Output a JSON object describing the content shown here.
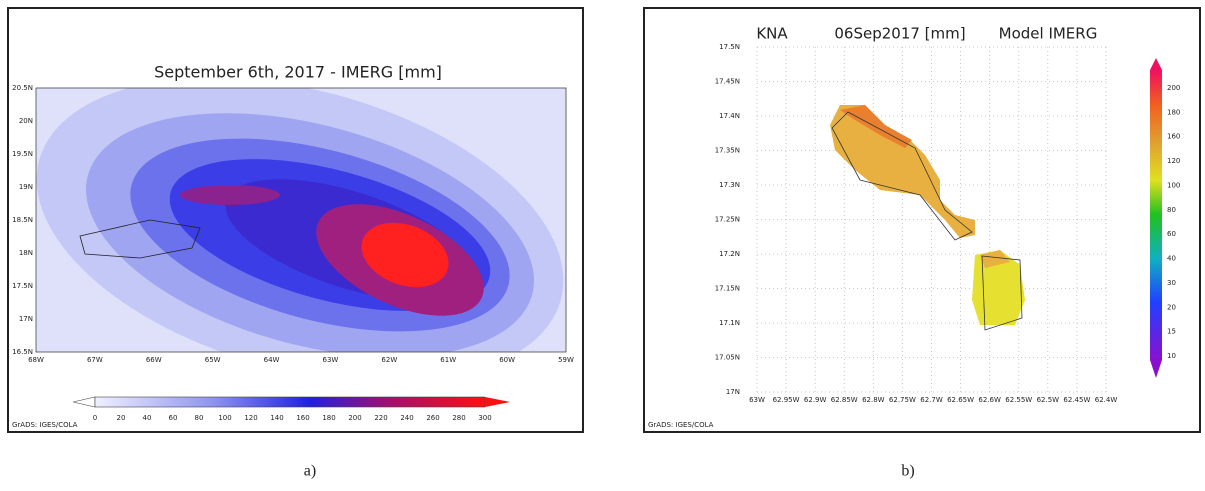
{
  "panels": [
    {
      "title": "September 6th, 2017 - IMERG [mm]",
      "y_labels": [
        "20.5N",
        "20N",
        "19.5N",
        "19N",
        "18.5N",
        "18N",
        "17.5N",
        "17N",
        "16.5N"
      ],
      "x_labels": [
        "68W",
        "67W",
        "66W",
        "65W",
        "64W",
        "63W",
        "62W",
        "61W",
        "60W",
        "59W"
      ],
      "colorbar_labels": [
        "0",
        "20",
        "40",
        "60",
        "80",
        "100",
        "120",
        "140",
        "160",
        "180",
        "200",
        "220",
        "240",
        "260",
        "280",
        "300"
      ],
      "footer": "GrADS: IGES/COLA",
      "caption": "a)"
    },
    {
      "title_left": "KNA",
      "title_center": "06Sep2017 [mm]",
      "title_right": "Model IMERG",
      "y_labels": [
        "17.5N",
        "17.45N",
        "17.4N",
        "17.35N",
        "17.3N",
        "17.25N",
        "17.2N",
        "17.15N",
        "17.1N",
        "17.05N",
        "17N"
      ],
      "x_labels": [
        "63W",
        "62.95W",
        "62.9W",
        "62.85W",
        "62.8W",
        "62.75W",
        "62.7W",
        "62.65W",
        "62.6W",
        "62.55W",
        "62.5W",
        "62.45W",
        "62.4W"
      ],
      "colorbar_labels": [
        "10",
        "15",
        "20",
        "30",
        "40",
        "60",
        "80",
        "100",
        "120",
        "160",
        "180",
        "200"
      ],
      "footer": "GrADS: IGES/COLA",
      "caption": "b)"
    }
  ]
}
